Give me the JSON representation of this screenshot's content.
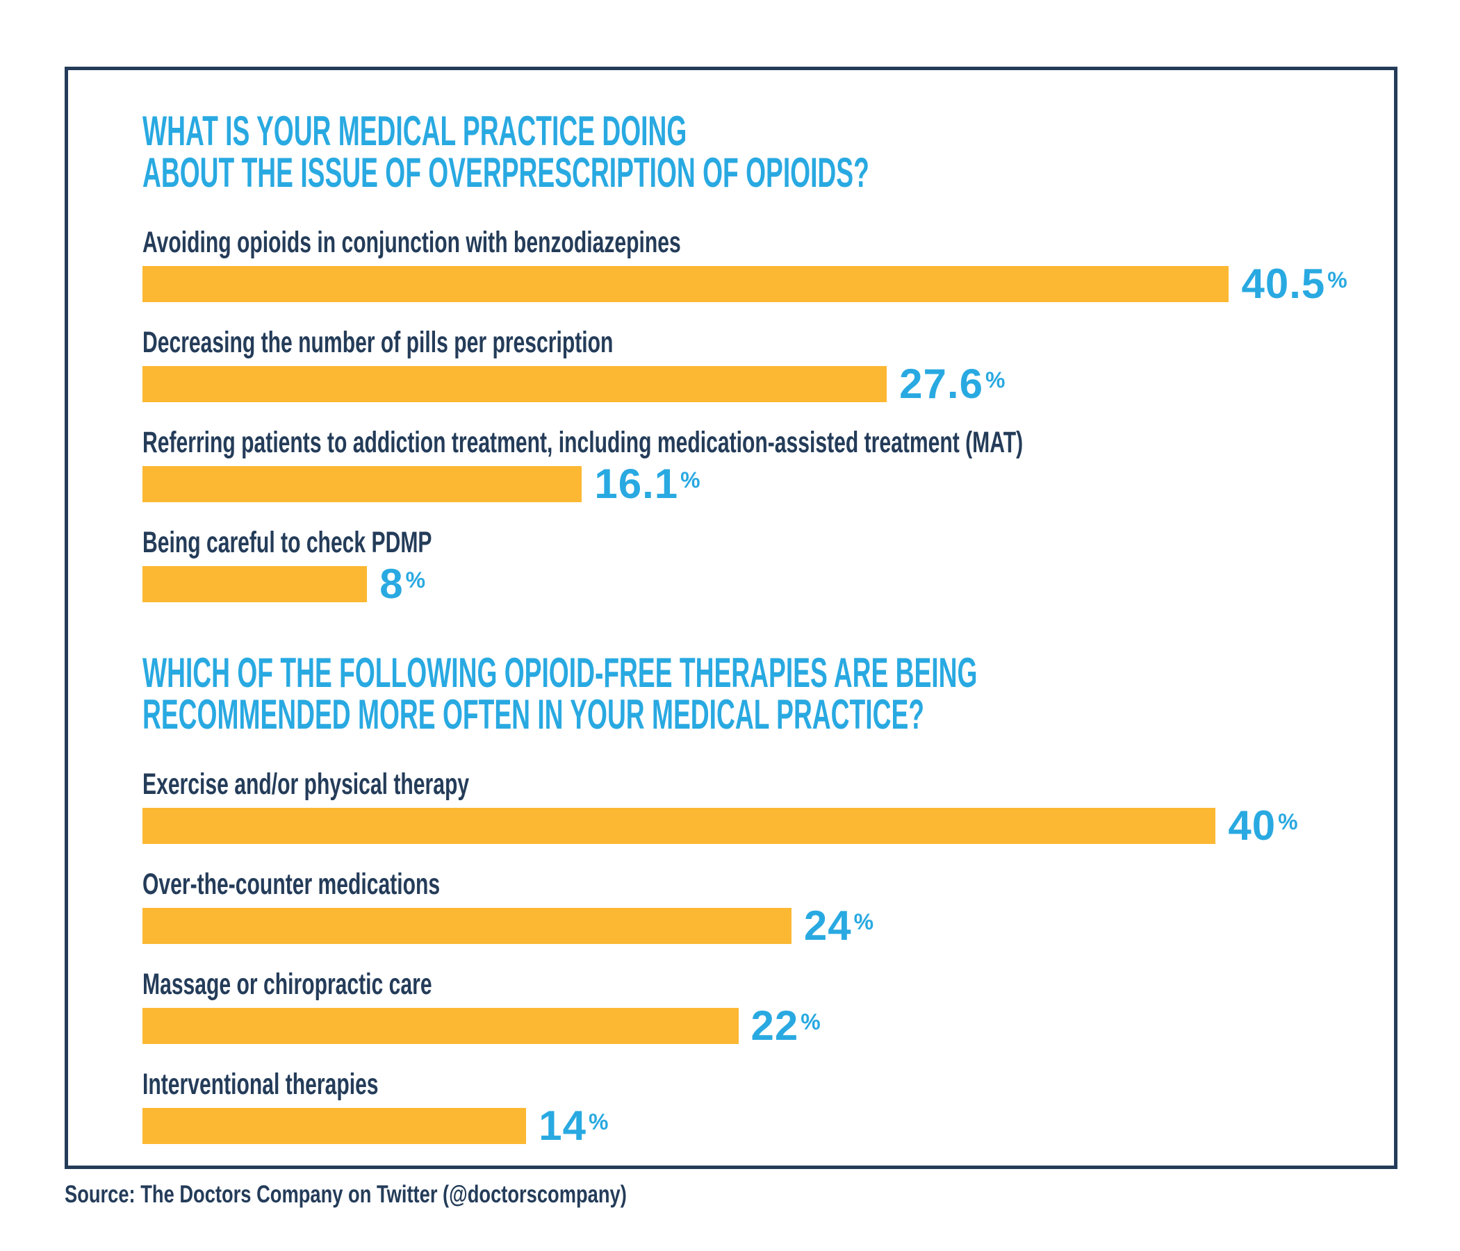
{
  "colors": {
    "bar_yellow": "#FCB832",
    "accent_blue": "#29A9E1",
    "navy_text": "#243C59",
    "card_border": "#243C59",
    "background": "#FFFFFF"
  },
  "chart_data": [
    {
      "type": "bar",
      "orientation": "horizontal",
      "title": "WHAT IS YOUR MEDICAL PRACTICE DOING ABOUT THE ISSUE OF OVERPRESCRIPTION OF OPIOIDS?",
      "title_lines": [
        "WHAT IS YOUR MEDICAL PRACTICE DOING",
        "ABOUT THE ISSUE OF OVERPRESCRIPTION OF OPIOIDS?"
      ],
      "categories": [
        "Avoiding opioids in conjunction with benzodiazepines",
        "Decreasing the number of pills per prescription",
        "Referring patients to addiction treatment, including medication-assisted treatment (MAT)",
        "Being careful to check PDMP"
      ],
      "values": [
        40.5,
        27.6,
        16.1,
        8
      ],
      "value_labels": [
        "40.5",
        "27.6",
        "16.1",
        "8"
      ],
      "unit": "%",
      "xlim": [
        0,
        45
      ],
      "grid": false,
      "legend": false,
      "bar_color": "#FCB832",
      "value_color": "#29A9E1"
    },
    {
      "type": "bar",
      "orientation": "horizontal",
      "title": "WHICH OF THE FOLLOWING OPIOID-FREE THERAPIES ARE BEING RECOMMENDED MORE OFTEN IN YOUR MEDICAL PRACTICE?",
      "title_lines": [
        "WHICH OF THE FOLLOWING OPIOID-FREE THERAPIES ARE BEING",
        "RECOMMENDED MORE OFTEN IN YOUR MEDICAL PRACTICE?"
      ],
      "categories": [
        "Exercise and/or physical therapy",
        "Over-the-counter medications",
        "Massage or chiropractic care",
        "Interventional therapies"
      ],
      "values": [
        40,
        24,
        22,
        14
      ],
      "value_labels": [
        "40",
        "24",
        "22",
        "14"
      ],
      "unit": "%",
      "xlim": [
        0,
        45
      ],
      "grid": false,
      "legend": false,
      "bar_color": "#FCB832",
      "value_color": "#29A9E1"
    }
  ],
  "source": {
    "label": "Source: The Doctors Company on Twitter (@doctorscompany)"
  }
}
